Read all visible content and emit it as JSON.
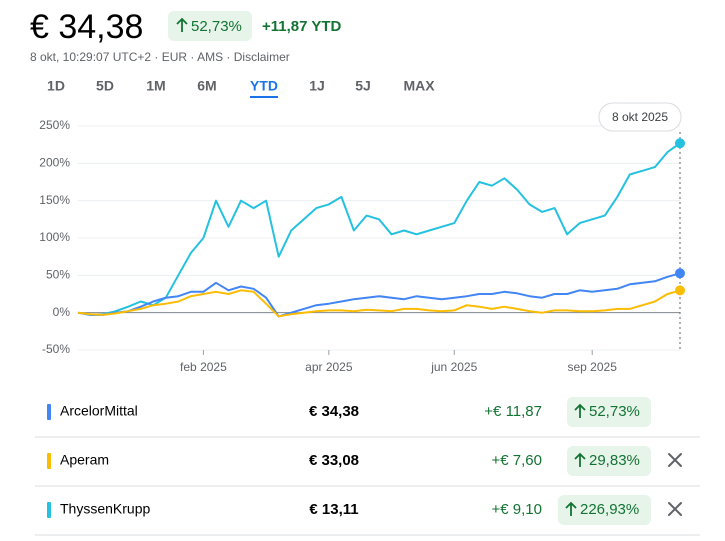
{
  "header": {
    "price": "€ 34,38",
    "change_pct": "52,73%",
    "change_abs": "+11,87 YTD",
    "meta": "8 okt, 10:29:07 UTC+2 · EUR · AMS · Disclaimer"
  },
  "tabs": {
    "items": [
      "1D",
      "5D",
      "1M",
      "6M",
      "YTD",
      "1J",
      "5J",
      "MAX"
    ],
    "selected": 4
  },
  "chart_data": {
    "type": "line",
    "x": [
      0,
      1,
      2,
      3,
      4,
      5,
      6,
      7,
      8,
      9,
      10,
      11,
      12,
      13,
      14,
      15,
      16,
      17,
      18,
      19,
      20,
      21,
      22,
      23,
      24,
      25,
      26,
      27,
      28,
      29,
      30,
      31,
      32,
      33,
      34,
      35,
      36,
      37,
      38,
      39,
      40,
      41,
      42,
      43,
      44,
      45,
      46,
      47,
      48
    ],
    "xlim": [
      0,
      48
    ],
    "xticks": [
      {
        "value": 10,
        "label": "feb 2025"
      },
      {
        "value": 20,
        "label": "apr 2025"
      },
      {
        "value": 30,
        "label": "jun 2025"
      },
      {
        "value": 41,
        "label": "sep 2025"
      }
    ],
    "ylim": [
      -50,
      250
    ],
    "yticks": [
      {
        "value": 250,
        "label": "250%"
      },
      {
        "value": 200,
        "label": "200%"
      },
      {
        "value": 150,
        "label": "150%"
      },
      {
        "value": 100,
        "label": "100%"
      },
      {
        "value": 50,
        "label": "50%"
      },
      {
        "value": 0,
        "label": "0%"
      },
      {
        "value": -50,
        "label": "-50%"
      }
    ],
    "grid": true,
    "tooltip": "8 okt 2025",
    "series": [
      {
        "name": "ThyssenKrupp",
        "color": "#24c1e0",
        "values": [
          0,
          -3,
          -2,
          2,
          8,
          15,
          10,
          20,
          50,
          80,
          100,
          150,
          115,
          150,
          140,
          150,
          75,
          110,
          125,
          140,
          145,
          155,
          110,
          130,
          125,
          105,
          110,
          105,
          110,
          115,
          120,
          150,
          175,
          170,
          180,
          165,
          145,
          135,
          140,
          105,
          120,
          125,
          130,
          155,
          185,
          190,
          195,
          215,
          226.93
        ]
      },
      {
        "name": "ArcelorMittal",
        "color": "#4285f4",
        "values": [
          0,
          -3,
          -3,
          0,
          2,
          8,
          15,
          20,
          22,
          28,
          28,
          40,
          30,
          35,
          32,
          20,
          -5,
          0,
          5,
          10,
          12,
          15,
          18,
          20,
          22,
          20,
          18,
          22,
          20,
          18,
          20,
          22,
          25,
          25,
          28,
          26,
          22,
          20,
          25,
          25,
          30,
          28,
          30,
          32,
          38,
          40,
          42,
          48,
          52.73
        ]
      },
      {
        "name": "Aperam",
        "color": "#fbbc04",
        "values": [
          0,
          -2,
          -3,
          -1,
          2,
          5,
          10,
          12,
          15,
          22,
          25,
          28,
          25,
          30,
          28,
          12,
          -5,
          -2,
          0,
          2,
          3,
          3,
          2,
          4,
          3,
          2,
          5,
          5,
          3,
          2,
          3,
          10,
          8,
          5,
          8,
          5,
          2,
          0,
          3,
          3,
          2,
          2,
          3,
          5,
          5,
          10,
          15,
          25,
          29.83
        ]
      }
    ]
  },
  "table": {
    "rows": [
      {
        "name": "ArcelorMittal",
        "color": "#4285f4",
        "price": "€ 34,38",
        "change": "+€ 11,87",
        "pct": "52,73%",
        "removable": false
      },
      {
        "name": "Aperam",
        "color": "#fbbc04",
        "price": "€ 33,08",
        "change": "+€ 7,60",
        "pct": "29,83%",
        "removable": true
      },
      {
        "name": "ThyssenKrupp",
        "color": "#24c1e0",
        "price": "€ 13,11",
        "change": "+€ 9,10",
        "pct": "226,93%",
        "removable": true
      }
    ]
  }
}
